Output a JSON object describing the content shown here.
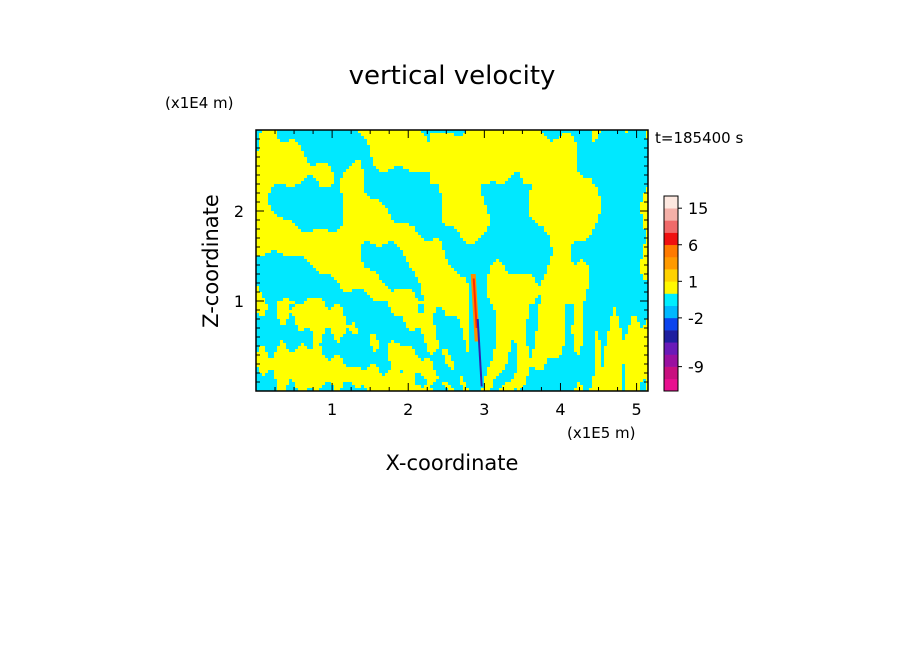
{
  "chart_data": {
    "type": "heatmap",
    "title": "vertical velocity",
    "xlabel": "X-coordinate",
    "ylabel": "Z-coordinate",
    "x_unit": "(x1E5 m)",
    "y_unit": "(x1E4 m)",
    "time_label": "t=185400 s",
    "xlim": [
      0,
      5.15
    ],
    "ylim": [
      0,
      2.9
    ],
    "x_ticks": [
      {
        "value": 1,
        "label": "1"
      },
      {
        "value": 2,
        "label": "2"
      },
      {
        "value": 3,
        "label": "3"
      },
      {
        "value": 4,
        "label": "4"
      },
      {
        "value": 5,
        "label": "5"
      }
    ],
    "y_ticks": [
      {
        "value": 1,
        "label": "1"
      },
      {
        "value": 2,
        "label": "2"
      }
    ],
    "field_note": "Field dominated by two contour levels (yellow ~0 to 1, cyan ~-1 to 0); strong updraft/downdraft core near x=2.8-2.9, z=0-1.3",
    "colorbar": {
      "levels": [
        {
          "color": "#e8108f"
        },
        {
          "color": "#c8107f"
        },
        {
          "color": "#9a10a0"
        },
        {
          "color": "#6a1ab8"
        },
        {
          "color": "#1f1f9f"
        },
        {
          "color": "#0b44ee"
        },
        {
          "color": "#00b8ff"
        },
        {
          "color": "#00eeff"
        },
        {
          "color": "#fff800"
        },
        {
          "color": "#ffd200"
        },
        {
          "color": "#ff9a00"
        },
        {
          "color": "#ff7a00"
        },
        {
          "color": "#f01010"
        },
        {
          "color": "#f06a6a"
        },
        {
          "color": "#f4b0a8"
        },
        {
          "color": "#fde8e0"
        }
      ],
      "tick_labels": [
        {
          "label": "-9",
          "after_index": 1
        },
        {
          "label": "-2",
          "after_index": 5
        },
        {
          "label": "1",
          "after_index": 8
        },
        {
          "label": "6",
          "after_index": 11
        },
        {
          "label": "15",
          "after_index": 14
        }
      ]
    },
    "colors": {
      "positive": "#ffff00",
      "negative": "#00e8ff",
      "core_up": "#ff2a00",
      "core_up2": "#ff8c00",
      "core_down": "#3020b0"
    }
  }
}
